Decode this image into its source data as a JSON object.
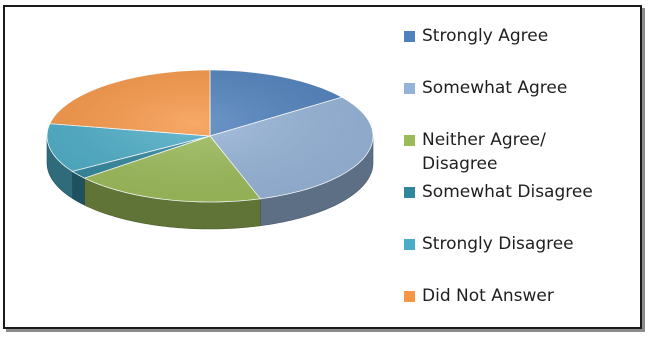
{
  "chart_data": {
    "type": "pie",
    "title": "",
    "legend_position": "right",
    "slices": [
      {
        "label": "Strongly Agree",
        "label_lines": [
          "Strongly Agree"
        ],
        "value": 15,
        "color": "#4f81bd"
      },
      {
        "label": "Somewhat Agree",
        "label_lines": [
          "Somewhat Agree"
        ],
        "value": 30,
        "color": "#95b3d7"
      },
      {
        "label": "Neither Agree/ Disagree",
        "label_lines": [
          "Neither Agree/",
          "Disagree"
        ],
        "value": 19,
        "color": "#9bbb59"
      },
      {
        "label": "Somewhat Disagree",
        "label_lines": [
          "Somewhat Disagree"
        ],
        "value": 2,
        "color": "#31859c"
      },
      {
        "label": "Strongly Disagree",
        "label_lines": [
          "Strongly Disagree"
        ],
        "value": 12,
        "color": "#4bacc6"
      },
      {
        "label": "Did Not Answer",
        "label_lines": [
          "Did Not Answer"
        ],
        "value": 22,
        "color": "#f79646"
      }
    ]
  }
}
